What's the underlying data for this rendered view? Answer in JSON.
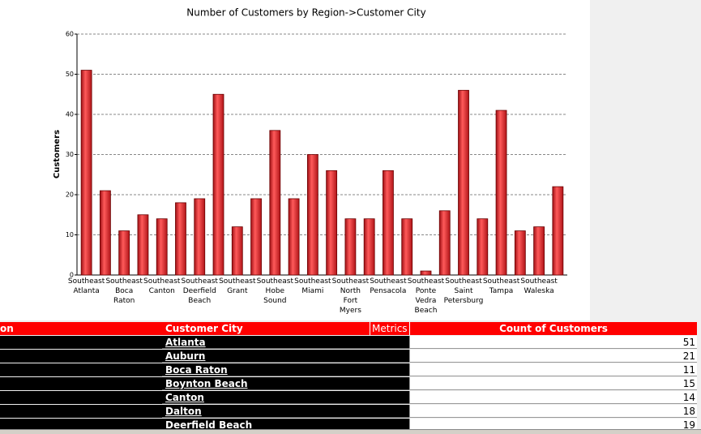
{
  "chart_data": {
    "type": "bar",
    "title": "Number of Customers by Region->Customer City",
    "y_label": "Customers",
    "categories": [
      "Southeast Atlanta",
      null,
      "Southeast Boca Raton",
      null,
      "Southeast Canton",
      null,
      "Southeast Deerfield Beach",
      null,
      "Southeast Grant",
      null,
      "Southeast Hobe Sound",
      null,
      "Southeast Miami",
      null,
      "Southeast North Fort Myers",
      null,
      "Southeast Pensacola",
      null,
      "Southeast Ponte Vedra Beach",
      null,
      "Southeast Saint Petersburg",
      null,
      "Southeast Tampa",
      null,
      "Southeast Waleska",
      null
    ],
    "values": [
      51,
      21,
      11,
      15,
      14,
      18,
      19,
      45,
      12,
      19,
      36,
      19,
      30,
      26,
      14,
      14,
      26,
      14,
      1,
      16,
      46,
      14,
      41,
      11,
      12,
      22
    ],
    "color": "#e8383c",
    "ylim": [
      0,
      60
    ],
    "yticks": [
      0,
      10,
      20,
      30,
      40,
      50,
      60
    ],
    "grid": true
  },
  "table": {
    "columns": [
      "on",
      "Customer City",
      "Metrics",
      "Count of Customers"
    ],
    "rows": [
      [
        "Atlanta",
        "51"
      ],
      [
        "Auburn",
        "21"
      ],
      [
        "Boca Raton",
        "11"
      ],
      [
        "Boynton Beach",
        "15"
      ],
      [
        "Canton",
        "14"
      ],
      [
        "Dalton",
        "18"
      ],
      [
        "Deerfield Beach",
        "19"
      ]
    ]
  }
}
